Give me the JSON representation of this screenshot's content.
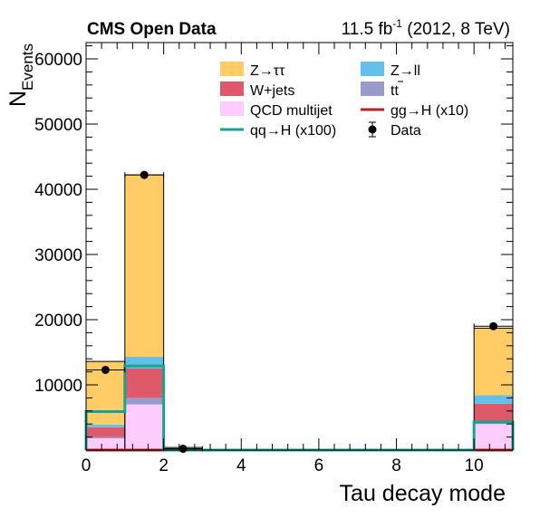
{
  "chart_data": {
    "type": "bar",
    "stacked": true,
    "title_left": "CMS Open Data",
    "lumi_value": "11.5 fb",
    "lumi_exp": "-1",
    "lumi_rest": "(2012, 8 TeV)",
    "xlabel": "Tau decay mode",
    "ylabel_main": "N",
    "ylabel_sub": "Events",
    "xlim": [
      0,
      11
    ],
    "ylim": [
      0,
      62500
    ],
    "x_ticks": [
      0,
      2,
      4,
      6,
      8,
      10
    ],
    "x_tick_labels": [
      "0",
      "2",
      "4",
      "6",
      "8",
      "10"
    ],
    "y_ticks": [
      10000,
      20000,
      30000,
      40000,
      50000,
      60000
    ],
    "y_tick_labels": [
      "10000",
      "20000",
      "30000",
      "40000",
      "50000",
      "60000"
    ],
    "bin_edges": [
      0,
      1,
      2,
      3,
      4,
      5,
      6,
      7,
      8,
      9,
      10,
      11
    ],
    "stack": [
      {
        "name": "QCD multijet",
        "legend": "QCD multijet",
        "color": "#ffccff",
        "values": [
          1800,
          7000,
          0,
          0,
          0,
          0,
          0,
          0,
          0,
          0,
          4000
        ]
      },
      {
        "name": "tt",
        "legend": "tt",
        "color": "#9999cc",
        "values": [
          200,
          1000,
          0,
          0,
          0,
          0,
          0,
          0,
          0,
          0,
          500
        ]
      },
      {
        "name": "W+jets",
        "legend": "W+jets",
        "color": "#de5a6a",
        "values": [
          1500,
          4500,
          0,
          0,
          0,
          0,
          0,
          0,
          0,
          0,
          2600
        ]
      },
      {
        "name": "Z→ll",
        "legend": "Z→ll",
        "color": "#64c0e8",
        "values": [
          400,
          1800,
          0,
          0,
          0,
          0,
          0,
          0,
          0,
          0,
          1300
        ]
      },
      {
        "name": "Z→ττ",
        "legend": "Z→ττ",
        "color": "#ffcc66",
        "values": [
          9700,
          27900,
          400,
          0,
          0,
          0,
          0,
          0,
          0,
          0,
          10300
        ]
      }
    ],
    "lines": [
      {
        "name": "gg→H (x10)",
        "legend": "gg→H (x10)",
        "color": "#bb2222",
        "values": [
          0,
          0,
          0,
          0,
          0,
          0,
          0,
          0,
          0,
          0,
          0
        ]
      },
      {
        "name": "qq→H (x100)",
        "legend": "qq→H (x100)",
        "color": "#14a58c",
        "values": [
          5900,
          12900,
          0,
          0,
          0,
          0,
          0,
          0,
          0,
          0,
          4300
        ]
      }
    ],
    "data": {
      "name": "Data",
      "legend": "Data",
      "x": [
        0.5,
        1.5,
        2.5,
        10.5
      ],
      "y": [
        12300,
        42200,
        200,
        19000
      ],
      "x_err": 0.5
    }
  }
}
